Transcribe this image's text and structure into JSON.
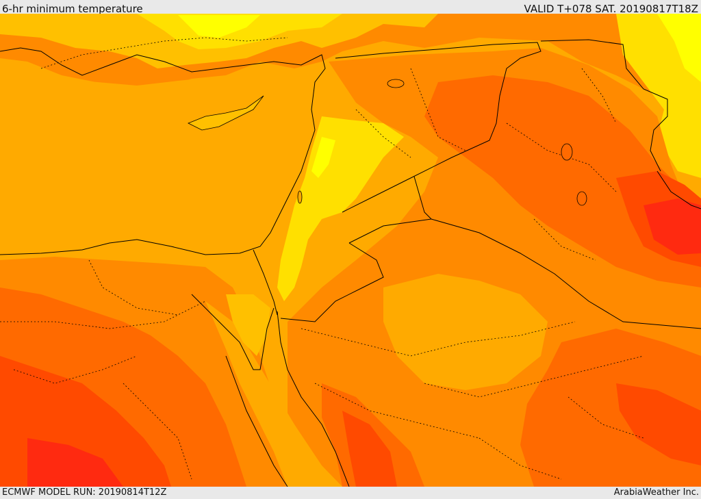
{
  "header": {
    "title": "6-hr minimum temperature",
    "valid_time": "VALID T+078 SAT. 20190817T18Z"
  },
  "footer": {
    "model_run": "ECMWF MODEL RUN: 20190814T12Z",
    "credit": "ArabiaWeather Inc."
  },
  "colors": {
    "yellow": "#ffff00",
    "light_yellow_orange": "#ffe000",
    "amber": "#ffc000",
    "orange_light": "#ffaa00",
    "orange": "#ff8a00",
    "dark_orange": "#ff6a00",
    "red_orange": "#ff4a00",
    "red": "#ff2a10",
    "border_line": "#000000"
  }
}
